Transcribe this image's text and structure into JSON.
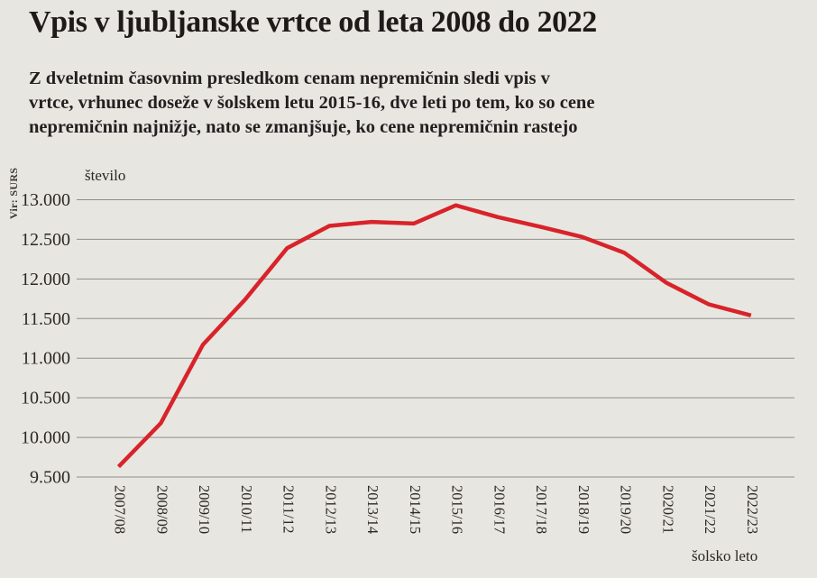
{
  "page": {
    "title": "Vpis v ljubljanske vrtce od leta 2008 do 2022",
    "subtitle_lines": [
      "Z dveletnim časovnim presledkom cenam nepremičnin sledi vpis v",
      "vrtce, vrhunec doseže v šolskem letu 2015-16, dve leti po tem, ko so cene",
      "nepremičnin najnižje, nato se zmanjšuje, ko cene nepremičnin rastejo"
    ],
    "source": "Vir: SURS"
  },
  "chart_data": {
    "type": "line",
    "title": "Vpis v ljubljanske vrtce od leta 2008 do 2022",
    "ylabel": "število",
    "xlabel": "šolsko leto",
    "categories": [
      "2007/08",
      "2008/09",
      "2009/10",
      "2010/11",
      "2011/12",
      "2012/13",
      "2013/14",
      "2014/15",
      "2015/16",
      "2016/17",
      "2017/18",
      "2018/19",
      "2019/20",
      "2020/21",
      "2021/22",
      "2022/23"
    ],
    "values": [
      9630,
      10180,
      11170,
      11740,
      12390,
      12670,
      12720,
      12700,
      12930,
      12780,
      12660,
      12530,
      12330,
      11950,
      11680,
      11540
    ],
    "ylim": [
      9500,
      13000
    ],
    "ytick_step": 500,
    "ytick_format": "thousands-dot",
    "grid": true,
    "legend": "none",
    "line_color": "#d8232a",
    "grid_color": "#8f8e8a",
    "background_color": "#e8e6e0",
    "text_color": "#231f20"
  }
}
